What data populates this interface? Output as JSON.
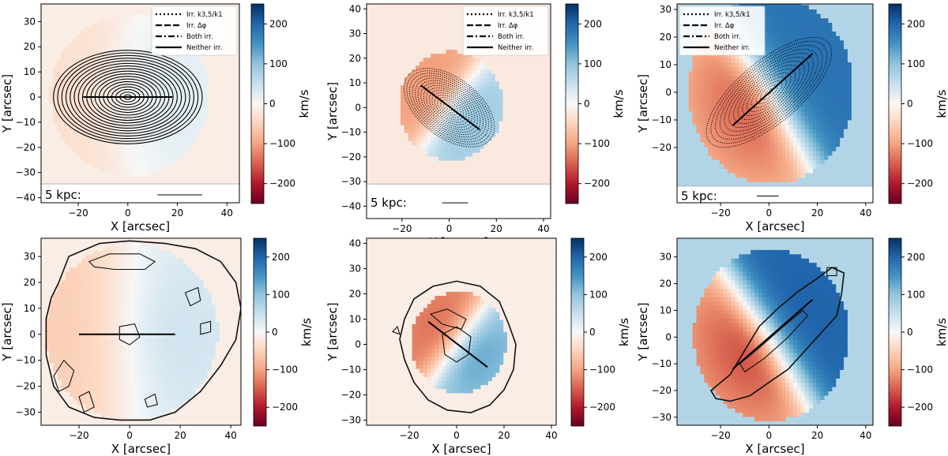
{
  "colorbar": {
    "label": "km/s",
    "ticks": [
      -200,
      -100,
      0,
      100,
      200
    ],
    "tick_labels": [
      "−200",
      "−100",
      "0",
      "100",
      "200"
    ],
    "range": [
      -250,
      250
    ],
    "colors": {
      "neg": "#67001f",
      "mid": "#f7f7f7",
      "pos": "#053061"
    }
  },
  "legend": {
    "entries": [
      {
        "label": "Irr. k3,5/k1",
        "style": "dotted"
      },
      {
        "label": "Irr. Δφ",
        "style": "dashed"
      },
      {
        "label": "Both irr.",
        "style": "dashdot"
      },
      {
        "label": "Neither irr.",
        "style": "solid"
      }
    ]
  },
  "scale_bar": {
    "label": "5 kpc:"
  },
  "chart_data": [
    {
      "type": "heatmap",
      "panel": "top-left",
      "xlabel": "X [arcsec]",
      "ylabel": "Y [arcsec]",
      "xlim": [
        -35,
        45
      ],
      "ylim": [
        -42,
        37
      ],
      "xticks": [
        -20,
        0,
        20,
        40
      ],
      "xtick_labels": [
        "−20",
        "0",
        "20",
        "40"
      ],
      "yticks": [
        -40,
        -30,
        -20,
        -10,
        0,
        10,
        20,
        30
      ],
      "ytick_labels": [
        "−40",
        "−30",
        "−20",
        "−10",
        "0",
        "10",
        "20",
        "30"
      ],
      "field": {
        "xmin": -35,
        "xmax": 45,
        "ymin": -34.5,
        "ymax": 37
      },
      "velocity_field": {
        "pa_deg": 0,
        "vmax": 35,
        "scale": 15,
        "extent": 32,
        "bar_vmin": 20
      },
      "kinematic_axis": {
        "x1": -18,
        "y1": 0,
        "x2": 18,
        "y2": 0
      },
      "ellipses": {
        "center": [
          0,
          0
        ],
        "pa_deg": 0,
        "q": 0.62,
        "count": 18,
        "a_min": 1.5,
        "a_max": 30,
        "style": "solid"
      },
      "legend_loc": "upper right",
      "scale_bar": {
        "x1": 12,
        "x2": 30
      }
    },
    {
      "type": "heatmap",
      "panel": "top-middle",
      "xlabel": "X [arcsec]",
      "ylabel": "Y [arcsec]",
      "xlim": [
        -35,
        43
      ],
      "ylim": [
        -45,
        42
      ],
      "xticks": [
        -20,
        0,
        20,
        40
      ],
      "xtick_labels": [
        "−20",
        "0",
        "20",
        "40"
      ],
      "yticks": [
        -40,
        -30,
        -20,
        -10,
        0,
        10,
        20,
        30,
        40
      ],
      "ytick_labels": [
        "−40",
        "−30",
        "−20",
        "−10",
        "0",
        "10",
        "20",
        "30",
        "40"
      ],
      "field": {
        "xmin": -35,
        "xmax": 43,
        "ymin": -31,
        "ymax": 42
      },
      "velocity_field": {
        "pa_deg": -37,
        "vmax": 120,
        "scale": 7,
        "extent": 22,
        "bar_vmin": 20
      },
      "kinematic_axis": {
        "x1": -12,
        "y1": 9,
        "x2": 13,
        "y2": -9
      },
      "ellipses": {
        "center": [
          0,
          0
        ],
        "pa_deg": -37,
        "q": 0.55,
        "count": 16,
        "a_min": 1.5,
        "a_max": 22,
        "style": "dotted"
      },
      "legend_loc": "upper right",
      "scale_bar": {
        "x1": -3,
        "x2": 8
      }
    },
    {
      "type": "heatmap",
      "panel": "top-right",
      "xlabel": "X [arcsec]",
      "ylabel": "Y [arcsec]",
      "xlim": [
        -38,
        43
      ],
      "ylim": [
        -40,
        32
      ],
      "xticks": [
        -20,
        0,
        20,
        40
      ],
      "xtick_labels": [
        "−20",
        "0",
        "20",
        "40"
      ],
      "yticks": [
        -20,
        -10,
        0,
        10,
        20,
        30
      ],
      "ytick_labels": [
        "−20",
        "−10",
        "0",
        "10",
        "20",
        "30"
      ],
      "field": {
        "xmin": -38,
        "xmax": 43,
        "ymin": -34,
        "ymax": 32
      },
      "velocity_field": {
        "pa_deg": 35,
        "vmax": 190,
        "scale": 8,
        "extent": 34,
        "bar_vmin": 40
      },
      "kinematic_axis": {
        "x1": -15,
        "y1": -12,
        "x2": 18,
        "y2": 14
      },
      "ellipses": {
        "center": [
          0,
          0
        ],
        "pa_deg": 40,
        "q": 0.35,
        "count": 14,
        "a_min": 2,
        "a_max": 32,
        "style": "dotted"
      },
      "legend_loc": "upper left",
      "scale_bar": {
        "x1": -5,
        "x2": 4
      }
    },
    {
      "type": "heatmap",
      "panel": "bottom-left",
      "xlabel": "X [arcsec]",
      "ylabel": "Y [arcsec]",
      "xlim": [
        -35,
        44
      ],
      "ylim": [
        -35,
        37
      ],
      "xticks": [
        -20,
        0,
        20,
        40
      ],
      "xtick_labels": [
        "−20",
        "0",
        "20",
        "40"
      ],
      "yticks": [
        -30,
        -20,
        -10,
        0,
        10,
        20,
        30
      ],
      "ytick_labels": [
        "−30",
        "−20",
        "−10",
        "0",
        "10",
        "20",
        "30"
      ],
      "field": {
        "xmin": -35,
        "xmax": 44,
        "ymin": -35,
        "ymax": 37
      },
      "velocity_field": {
        "pa_deg": 0,
        "vmax": 60,
        "scale": 15,
        "extent": 34,
        "bar_vmin": 20
      },
      "kinematic_axis": {
        "x1": -20,
        "y1": 0,
        "x2": 18,
        "y2": 0
      },
      "outer_contour": [
        [
          -28,
          20
        ],
        [
          -24,
          30
        ],
        [
          -12,
          35
        ],
        [
          0,
          36
        ],
        [
          14,
          35
        ],
        [
          26,
          33
        ],
        [
          36,
          28
        ],
        [
          42,
          20
        ],
        [
          44,
          10
        ],
        [
          42,
          -2
        ],
        [
          36,
          -12
        ],
        [
          28,
          -22
        ],
        [
          18,
          -30
        ],
        [
          8,
          -33
        ],
        [
          -4,
          -33
        ],
        [
          -14,
          -32
        ],
        [
          -24,
          -28
        ],
        [
          -30,
          -20
        ],
        [
          -33,
          -8
        ],
        [
          -33,
          6
        ],
        [
          -31,
          14
        ]
      ],
      "inner_contours": [
        [
          [
            -16,
            28
          ],
          [
            -8,
            31
          ],
          [
            4,
            31
          ],
          [
            10,
            28
          ],
          [
            6,
            25
          ],
          [
            -6,
            25
          ],
          [
            -14,
            26
          ]
        ],
        [
          [
            -4,
            3
          ],
          [
            2,
            4
          ],
          [
            4,
            -1
          ],
          [
            0,
            -4
          ],
          [
            -4,
            -2
          ]
        ],
        [
          [
            22,
            16
          ],
          [
            27,
            18
          ],
          [
            28,
            13
          ],
          [
            24,
            11
          ]
        ],
        [
          [
            -30,
            -16
          ],
          [
            -26,
            -10
          ],
          [
            -22,
            -14
          ],
          [
            -24,
            -20
          ],
          [
            -28,
            -22
          ]
        ],
        [
          [
            -20,
            -24
          ],
          [
            -16,
            -22
          ],
          [
            -14,
            -28
          ],
          [
            -18,
            -30
          ]
        ],
        [
          [
            6,
            -25
          ],
          [
            10,
            -23
          ],
          [
            11,
            -27
          ],
          [
            7,
            -28
          ]
        ],
        [
          [
            28,
            4
          ],
          [
            32,
            5
          ],
          [
            32,
            1
          ],
          [
            28,
            0
          ]
        ]
      ]
    },
    {
      "type": "heatmap",
      "panel": "bottom-middle",
      "xlabel": "X [arcsec]",
      "ylabel": "Y [arcsec]",
      "xlim": [
        -38,
        42
      ],
      "ylim": [
        -32,
        42
      ],
      "xticks": [
        -20,
        0,
        20,
        40
      ],
      "xtick_labels": [
        "−20",
        "0",
        "20",
        "40"
      ],
      "yticks": [
        -30,
        -20,
        -10,
        0,
        10,
        20,
        30,
        40
      ],
      "ytick_labels": [
        "−30",
        "−20",
        "−10",
        "0",
        "10",
        "20",
        "30",
        "40"
      ],
      "field": {
        "xmin": -38,
        "xmax": 42,
        "ymin": -32,
        "ymax": 42
      },
      "velocity_field": {
        "pa_deg": -37,
        "vmax": 160,
        "scale": 7,
        "extent": 20,
        "bar_vmin": 20
      },
      "kinematic_axis": {
        "x1": -12,
        "y1": 9,
        "x2": 13,
        "y2": -9
      },
      "outer_contour": [
        [
          -22,
          10
        ],
        [
          -18,
          18
        ],
        [
          -10,
          23
        ],
        [
          0,
          25
        ],
        [
          10,
          23
        ],
        [
          18,
          17
        ],
        [
          22,
          8
        ],
        [
          25,
          0
        ],
        [
          24,
          -10
        ],
        [
          20,
          -18
        ],
        [
          14,
          -24
        ],
        [
          6,
          -27
        ],
        [
          -4,
          -26
        ],
        [
          -12,
          -22
        ],
        [
          -18,
          -15
        ],
        [
          -22,
          -6
        ],
        [
          -24,
          2
        ]
      ],
      "inner_contours": [
        [
          [
            -6,
            4
          ],
          [
            0,
            7
          ],
          [
            6,
            3
          ],
          [
            5,
            -4
          ],
          [
            0,
            -7
          ],
          [
            -5,
            -4
          ]
        ],
        [
          [
            -11,
            12
          ],
          [
            -4,
            14
          ],
          [
            4,
            10
          ],
          [
            2,
            6
          ],
          [
            -6,
            8
          ]
        ],
        [
          [
            -27,
            5
          ],
          [
            -25,
            7
          ],
          [
            -24,
            4
          ]
        ]
      ]
    },
    {
      "type": "heatmap",
      "panel": "bottom-right",
      "xlabel": "X [arcsec]",
      "ylabel": "Y [arcsec]",
      "xlim": [
        -38,
        43
      ],
      "ylim": [
        -33,
        37
      ],
      "xticks": [
        -20,
        0,
        20,
        40
      ],
      "xtick_labels": [
        "−20",
        "0",
        "20",
        "40"
      ],
      "yticks": [
        -30,
        -20,
        -10,
        0,
        10,
        20,
        30
      ],
      "ytick_labels": [
        "−30",
        "−20",
        "−10",
        "0",
        "10",
        "20",
        "30"
      ],
      "field": {
        "xmin": -38,
        "xmax": 43,
        "ymin": -33,
        "ymax": 37
      },
      "velocity_field": {
        "pa_deg": 35,
        "vmax": 210,
        "scale": 8,
        "extent": 32,
        "bar_vmin": 40
      },
      "kinematic_axis": {
        "x1": -15,
        "y1": -12,
        "x2": 18,
        "y2": 14
      },
      "outer_contour": [
        [
          -24,
          -20
        ],
        [
          -16,
          -14
        ],
        [
          -10,
          -5
        ],
        [
          -4,
          4
        ],
        [
          4,
          11
        ],
        [
          12,
          17
        ],
        [
          20,
          22
        ],
        [
          26,
          26
        ],
        [
          31,
          24
        ],
        [
          30,
          16
        ],
        [
          28,
          8
        ],
        [
          22,
          2
        ],
        [
          16,
          -4
        ],
        [
          8,
          -12
        ],
        [
          0,
          -17
        ],
        [
          -8,
          -22
        ],
        [
          -16,
          -24
        ],
        [
          -22,
          -23
        ]
      ],
      "inner_contours": [
        [
          [
            -12,
            -10
          ],
          [
            -4,
            -4
          ],
          [
            6,
            4
          ],
          [
            14,
            10
          ],
          [
            16,
            8
          ],
          [
            8,
            0
          ],
          [
            -2,
            -8
          ],
          [
            -10,
            -13
          ]
        ],
        [
          [
            24,
            26
          ],
          [
            28,
            26
          ],
          [
            28,
            23
          ],
          [
            24,
            23
          ]
        ]
      ]
    }
  ]
}
